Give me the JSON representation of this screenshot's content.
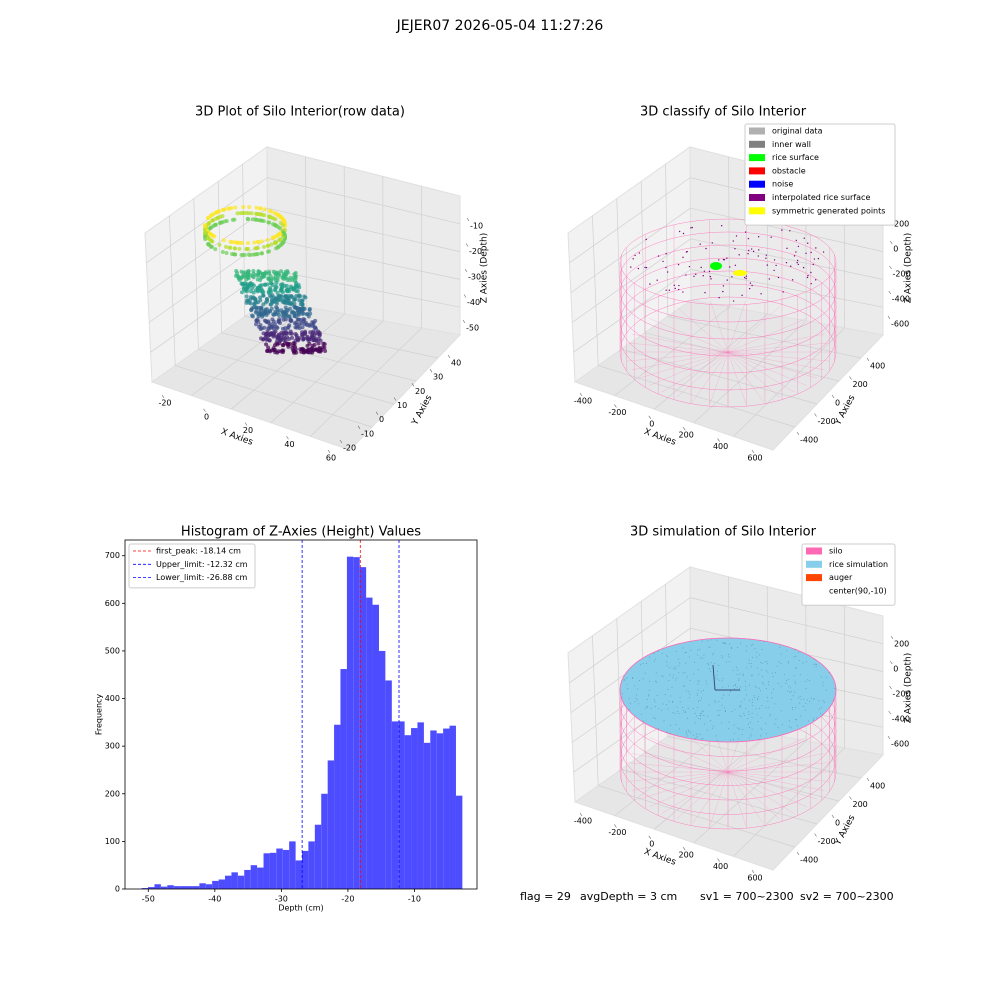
{
  "title": "JEJER07 2026-05-04 11:27:26",
  "chart_data": [
    {
      "type": "scatter3d",
      "title": "3D Plot of Silo Interior(row data)",
      "xlabel": "X Axies",
      "ylabel": "Y Axies",
      "zlabel": "Z Axies (Depth)",
      "xticks": [
        -20,
        0,
        20,
        40,
        60
      ],
      "yticks": [
        -20,
        -10,
        0,
        10,
        20,
        30,
        40
      ],
      "zticks": [
        -10,
        -20,
        -30,
        -40,
        -50
      ]
    },
    {
      "type": "scatter3d",
      "title": "3D classify of Silo Interior",
      "xlabel": "X Axies",
      "ylabel": "Y Axies",
      "zlabel": "Z Axies (Depth)",
      "xticks": [
        -400,
        -200,
        0,
        200,
        400,
        600
      ],
      "yticks": [
        -400,
        -200,
        0,
        200,
        400
      ],
      "zticks": [
        200,
        0,
        -200,
        -400,
        -600
      ],
      "legend": [
        {
          "name": "original data",
          "color": "#b0b0b0"
        },
        {
          "name": "inner wall",
          "color": "#808080"
        },
        {
          "name": "rice surface",
          "color": "#00ff00"
        },
        {
          "name": "obstacle",
          "color": "#ff0000"
        },
        {
          "name": "noise",
          "color": "#0000ff"
        },
        {
          "name": "interpolated rice surface",
          "color": "#800080"
        },
        {
          "name": "symmetric generated points",
          "color": "#ffff00"
        }
      ]
    },
    {
      "type": "histogram",
      "title": "Histogram of Z-Axies (Height) Values",
      "xlabel": "Depth (cm)",
      "ylabel": "Frequency",
      "color": "#4d4dff",
      "bins": [
        -51.0,
        -50.04,
        -49.07,
        -48.11,
        -47.14,
        -46.18,
        -45.22,
        -44.25,
        -43.29,
        -42.32,
        -41.36,
        -40.4,
        -39.43,
        -38.47,
        -37.5,
        -36.54,
        -35.58,
        -34.61,
        -33.65,
        -32.68,
        -31.72,
        -30.76,
        -29.79,
        -28.83,
        -27.86,
        -26.9,
        -25.94,
        -24.97,
        -24.01,
        -23.04,
        -22.08,
        -21.12,
        -20.15,
        -19.19,
        -18.22,
        -17.26,
        -16.3,
        -15.33,
        -14.37,
        -13.4,
        -12.44,
        -11.48,
        -10.51,
        -9.55,
        -8.58,
        -7.62,
        -6.66,
        -5.69,
        -4.73,
        -3.76,
        -2.8
      ],
      "counts": [
        2,
        4,
        10,
        5,
        8,
        6,
        6,
        6,
        6,
        12,
        10,
        17,
        20,
        28,
        35,
        28,
        40,
        50,
        45,
        75,
        76,
        85,
        82,
        100,
        60,
        80,
        100,
        135,
        200,
        270,
        345,
        462,
        698,
        697,
        676,
        612,
        597,
        500,
        438,
        352,
        352,
        323,
        338,
        350,
        307,
        333,
        327,
        337,
        343,
        196
      ],
      "xlim": [
        -53.5,
        -0.6
      ],
      "ylim": [
        0,
        733
      ],
      "xticks": [
        -50,
        -40,
        -30,
        -20,
        -10
      ],
      "yticks": [
        0,
        100,
        200,
        300,
        400,
        500,
        600,
        700
      ],
      "vlines": [
        {
          "label": "first_peak: -18.14 cm",
          "value": -18.14,
          "color": "#ff0000"
        },
        {
          "label": "Upper_limit: -12.32 cm",
          "value": -12.32,
          "color": "#0000ff"
        },
        {
          "label": "Lower_limit: -26.88 cm",
          "value": -26.88,
          "color": "#0000ff"
        }
      ],
      "legend_position": "upper left"
    },
    {
      "type": "scatter3d",
      "title": "3D simulation of Silo Interior",
      "xlabel": "X Axies",
      "ylabel": "Y Axies",
      "zlabel": "Z Axies (Depth)",
      "xticks": [
        -400,
        -200,
        0,
        200,
        400,
        600
      ],
      "yticks": [
        -400,
        -200,
        0,
        200,
        400
      ],
      "zticks": [
        200,
        0,
        -200,
        -400,
        -600
      ],
      "legend": [
        {
          "name": "silo",
          "color": "#ff69b4"
        },
        {
          "name": "rice simulation",
          "color": "#87ceeb"
        },
        {
          "name": "auger",
          "color": "#ff4500"
        },
        {
          "name": "center(90,-10)",
          "color": "#ffffff"
        }
      ]
    }
  ],
  "status": [
    "flag = 29",
    "avgDepth = 3 cm",
    "sv1 = 700~2300",
    "sv2 = 700~2300"
  ]
}
